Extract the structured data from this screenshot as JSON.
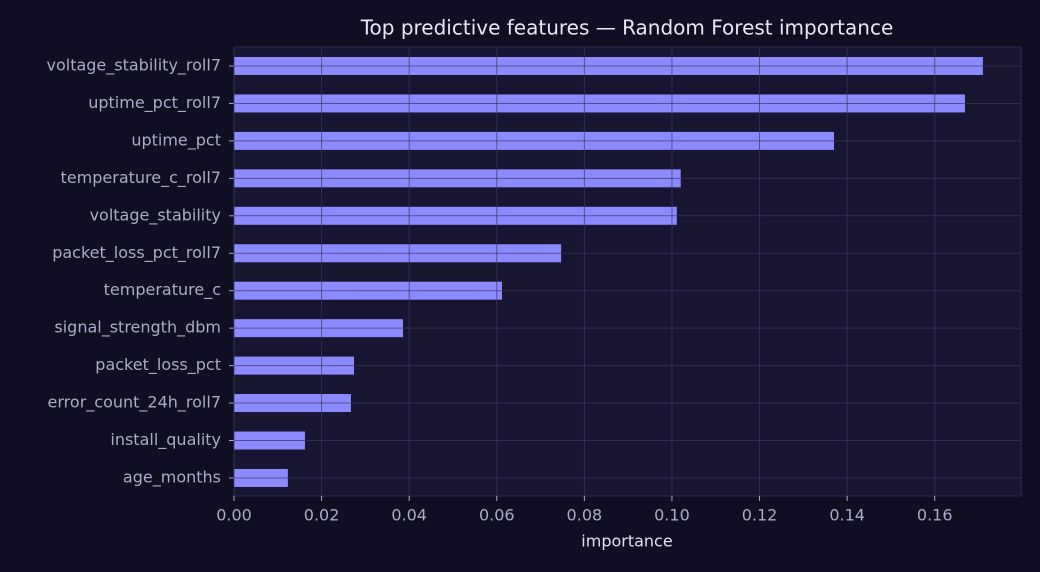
{
  "chart_data": {
    "type": "barh",
    "title": "Top predictive features — Random Forest importance",
    "x_label": "importance",
    "categories": [
      "voltage_stability_roll7",
      "uptime_pct_roll7",
      "uptime_pct",
      "temperature_c_roll7",
      "voltage_stability",
      "packet_loss_pct_roll7",
      "temperature_c",
      "signal_strength_dbm",
      "packet_loss_pct",
      "error_count_24h_roll7",
      "install_quality",
      "age_months"
    ],
    "values": [
      0.171,
      0.1669,
      0.137,
      0.102,
      0.1011,
      0.0747,
      0.0612,
      0.0386,
      0.0274,
      0.0267,
      0.0162,
      0.0123
    ],
    "color": "#8b8bff",
    "xlim": [
      0,
      0.1797
    ],
    "xticks": [
      {
        "value": 0,
        "label": "0.00"
      },
      {
        "value": 0.02,
        "label": "0.02"
      },
      {
        "value": 0.04,
        "label": "0.04"
      },
      {
        "value": 0.06,
        "label": "0.06"
      },
      {
        "value": 0.08,
        "label": "0.08"
      },
      {
        "value": 0.1,
        "label": "0.10"
      },
      {
        "value": 0.12,
        "label": "0.12"
      },
      {
        "value": 0.14,
        "label": "0.14"
      },
      {
        "value": 0.16,
        "label": "0.16"
      }
    ],
    "grid": true
  }
}
